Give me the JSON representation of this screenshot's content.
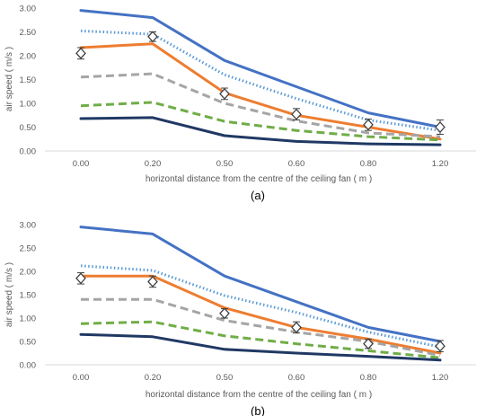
{
  "chart_data": [
    {
      "type": "line",
      "panel_label": "(a)",
      "xlabel": "horizontal distance from the centre of the ceiling fan ( m )",
      "ylabel": "air speed ( m/s )",
      "categories": [
        "0.00",
        "0.20",
        "0.50",
        "0.60",
        "0.80",
        "1.20"
      ],
      "yticks": [
        "0.00",
        "0.50",
        "1.00",
        "1.50",
        "2.00",
        "2.50",
        "3.00"
      ],
      "ylim": [
        0,
        3
      ],
      "grid": false,
      "legend": "none",
      "series": [
        {
          "style": "solid",
          "color": "#4472c4",
          "values": [
            2.95,
            2.8,
            1.9,
            1.35,
            0.8,
            0.5
          ]
        },
        {
          "style": "dotted",
          "color": "#5b9bd5",
          "values": [
            2.52,
            2.45,
            1.6,
            1.1,
            0.65,
            0.43
          ]
        },
        {
          "style": "solid",
          "color": "#ed7d31",
          "values": [
            2.17,
            2.25,
            1.22,
            0.75,
            0.5,
            0.25
          ]
        },
        {
          "style": "dashed",
          "color": "#a5a5a5",
          "values": [
            1.55,
            1.62,
            1.0,
            0.63,
            0.38,
            0.3
          ]
        },
        {
          "style": "dashed",
          "color": "#70ad47",
          "values": [
            0.95,
            1.02,
            0.62,
            0.43,
            0.3,
            0.23
          ]
        },
        {
          "style": "solid",
          "color": "#203864",
          "values": [
            0.68,
            0.7,
            0.32,
            0.2,
            0.15,
            0.13
          ]
        }
      ],
      "measured": {
        "values": [
          2.05,
          2.4,
          1.2,
          0.77,
          0.55,
          0.5
        ],
        "errors": [
          0.12,
          0.1,
          0.12,
          0.12,
          0.12,
          0.15
        ]
      }
    },
    {
      "type": "line",
      "panel_label": "(b)",
      "xlabel": "horizontal distance from the centre of the ceiling fan ( m )",
      "ylabel": "air speed ( m/s )",
      "categories": [
        "0.00",
        "0.20",
        "0.50",
        "0.60",
        "0.80",
        "1.20"
      ],
      "yticks": [
        "0.00",
        "0.50",
        "1.00",
        "1.50",
        "2.00",
        "2.50",
        "3.00"
      ],
      "ylim": [
        0,
        3
      ],
      "grid": false,
      "legend": "none",
      "series": [
        {
          "style": "solid",
          "color": "#4472c4",
          "values": [
            2.95,
            2.8,
            1.9,
            1.35,
            0.8,
            0.5
          ]
        },
        {
          "style": "dotted",
          "color": "#5b9bd5",
          "values": [
            2.12,
            2.02,
            1.48,
            1.12,
            0.7,
            0.38
          ]
        },
        {
          "style": "solid",
          "color": "#ed7d31",
          "values": [
            1.9,
            1.9,
            1.22,
            0.8,
            0.55,
            0.25
          ]
        },
        {
          "style": "dashed",
          "color": "#a5a5a5",
          "values": [
            1.4,
            1.4,
            0.95,
            0.7,
            0.5,
            0.2
          ]
        },
        {
          "style": "dashed",
          "color": "#70ad47",
          "values": [
            0.88,
            0.92,
            0.62,
            0.45,
            0.3,
            0.15
          ]
        },
        {
          "style": "solid",
          "color": "#203864",
          "values": [
            0.65,
            0.6,
            0.33,
            0.25,
            0.18,
            0.1
          ]
        }
      ],
      "measured": {
        "values": [
          1.85,
          1.78,
          1.1,
          0.8,
          0.45,
          0.4
        ],
        "errors": [
          0.12,
          0.12,
          0.1,
          0.12,
          0.1,
          0.12
        ]
      }
    }
  ]
}
